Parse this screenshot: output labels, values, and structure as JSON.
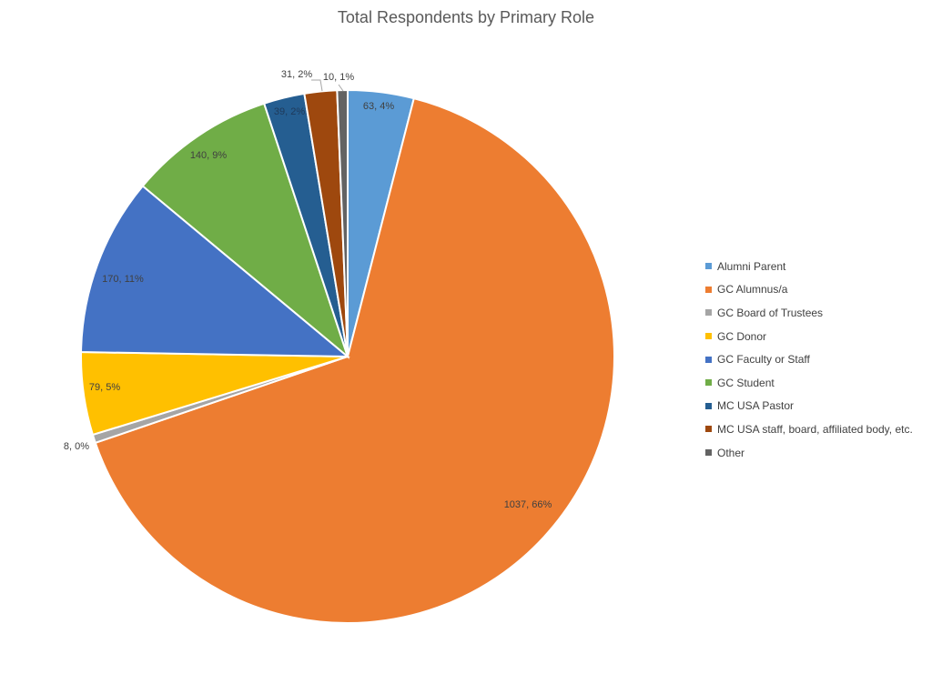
{
  "chart_data": {
    "type": "pie",
    "title": "Total Respondents by Primary Role",
    "slices": [
      {
        "name": "Alumni Parent",
        "value": 63,
        "percent": "4%",
        "label": "63, 4%",
        "color": "#5b9bd5"
      },
      {
        "name": "GC Alumnus/a",
        "value": 1037,
        "percent": "66%",
        "label": "1037, 66%",
        "color": "#ed7d31"
      },
      {
        "name": "GC Board of Trustees",
        "value": 8,
        "percent": "0%",
        "label": "8, 0%",
        "color": "#a5a5a5"
      },
      {
        "name": "GC Donor",
        "value": 79,
        "percent": "5%",
        "label": "79, 5%",
        "color": "#ffc000"
      },
      {
        "name": "GC Faculty or Staff",
        "value": 170,
        "percent": "11%",
        "label": "170, 11%",
        "color": "#4472c4"
      },
      {
        "name": "GC Student",
        "value": 140,
        "percent": "9%",
        "label": "140, 9%",
        "color": "#70ad47"
      },
      {
        "name": "MC USA Pastor",
        "value": 39,
        "percent": "2%",
        "label": "39, 2%",
        "color": "#255e91"
      },
      {
        "name": "MC USA staff, board, affiliated body, etc.",
        "value": 31,
        "percent": "2%",
        "label": "31, 2%",
        "color": "#9e480e"
      },
      {
        "name": "Other",
        "value": 10,
        "percent": "1%",
        "label": "10, 1%",
        "color": "#636363"
      }
    ],
    "legend_position": "right",
    "start_angle": "12 o'clock, clockwise"
  }
}
